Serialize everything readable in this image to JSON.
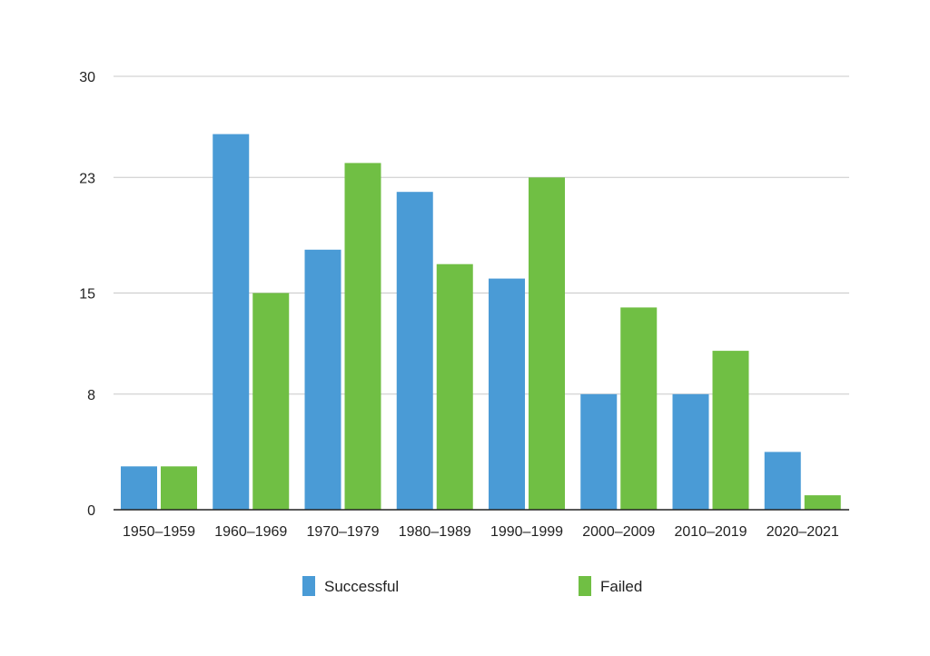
{
  "chart_data": {
    "type": "bar",
    "title": "",
    "xlabel": "",
    "ylabel": "",
    "categories": [
      "1950–1959",
      "1960–1969",
      "1970–1979",
      "1980–1989",
      "1990–1999",
      "2000–2009",
      "2010–2019",
      "2020–2021"
    ],
    "series": [
      {
        "name": "Successful",
        "color": "#4a9bd6",
        "values": [
          3,
          26,
          18,
          22,
          16,
          8,
          8,
          4
        ]
      },
      {
        "name": "Failed",
        "color": "#70bf44",
        "values": [
          3,
          15,
          24,
          17,
          23,
          14,
          11,
          1
        ]
      }
    ],
    "ylim": [
      0,
      30
    ],
    "yticks": [
      "0",
      "8",
      "15",
      "23",
      "30"
    ],
    "grid": true,
    "legend_position": "bottom"
  }
}
